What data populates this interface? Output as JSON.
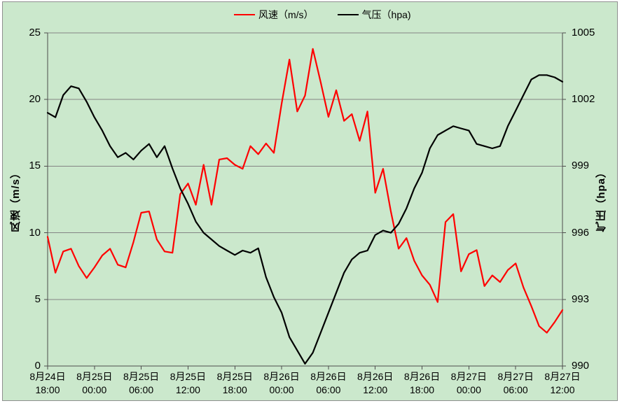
{
  "colors": {
    "background": "#cbe8cc",
    "border": "#8f8f8f",
    "grid": "#848484",
    "axis": "#4d4d4d",
    "wind": "#ff0000",
    "pressure": "#000000"
  },
  "legend": {
    "wind_label": "风速（m/s）",
    "pressure_label": "气压（hpa)"
  },
  "chart_data": {
    "type": "line",
    "title": "",
    "grid": true,
    "legend_position": "top",
    "x_start": "8月24日 18:00",
    "x_end": "8月27日 12:00",
    "points_interval_hours": 1,
    "left_axis": {
      "title": "风速（m/s）",
      "range": [
        0,
        25
      ],
      "step": 5,
      "tick_labels": [
        "25",
        "20",
        "15",
        "10",
        "5",
        "0"
      ]
    },
    "right_axis": {
      "title": "气压（hpa）",
      "range": [
        990,
        1005
      ],
      "step": 3,
      "tick_labels": [
        "1005",
        "1002",
        "999",
        "996",
        "993",
        "990"
      ]
    },
    "x_axis": {
      "tick_interval_hours": 6,
      "tick_labels": [
        {
          "date": "8月24日",
          "time": "18:00"
        },
        {
          "date": "8月25日",
          "time": "00:00"
        },
        {
          "date": "8月25日",
          "time": "06:00"
        },
        {
          "date": "8月25日",
          "time": "12:00"
        },
        {
          "date": "8月25日",
          "time": "18:00"
        },
        {
          "date": "8月26日",
          "time": "00:00"
        },
        {
          "date": "8月26日",
          "time": "06:00"
        },
        {
          "date": "8月26日",
          "time": "12:00"
        },
        {
          "date": "8月26日",
          "time": "18:00"
        },
        {
          "date": "8月27日",
          "time": "00:00"
        },
        {
          "date": "8月27日",
          "time": "06:00"
        },
        {
          "date": "8月27日",
          "time": "12:00"
        }
      ]
    },
    "series": [
      {
        "name": "风速（m/s）",
        "color": "#ff0000",
        "axis": "left",
        "values": [
          9.7,
          7.0,
          8.6,
          8.8,
          7.5,
          6.6,
          7.4,
          8.3,
          8.8,
          7.6,
          7.4,
          9.3,
          11.5,
          11.6,
          9.5,
          8.6,
          8.5,
          12.9,
          13.7,
          12.1,
          15.1,
          12.1,
          15.5,
          15.6,
          15.1,
          14.8,
          16.5,
          15.9,
          16.7,
          16.0,
          19.7,
          23.0,
          19.1,
          20.3,
          23.8,
          21.3,
          18.7,
          20.7,
          18.4,
          18.9,
          16.9,
          19.1,
          13.0,
          14.8,
          11.6,
          8.8,
          9.6,
          7.9,
          6.8,
          6.1,
          4.8,
          10.8,
          11.4,
          7.1,
          8.4,
          8.7,
          6.0,
          6.8,
          6.3,
          7.2,
          7.7,
          5.9,
          4.5,
          3.0,
          2.5,
          3.3,
          4.2
        ]
      },
      {
        "name": "气压（hpa)",
        "color": "#000000",
        "axis": "right",
        "values": [
          1001.4,
          1001.2,
          1002.2,
          1002.6,
          1002.5,
          1001.9,
          1001.2,
          1000.6,
          999.9,
          999.4,
          999.6,
          999.3,
          999.7,
          1000.0,
          999.4,
          999.9,
          998.9,
          998.0,
          997.3,
          996.5,
          996.0,
          995.7,
          995.4,
          995.2,
          995.0,
          995.2,
          995.1,
          995.3,
          994.0,
          993.1,
          992.4,
          991.3,
          990.7,
          990.1,
          990.6,
          991.5,
          992.4,
          993.3,
          994.2,
          994.8,
          995.1,
          995.2,
          995.9,
          996.1,
          996.0,
          996.4,
          997.1,
          998.0,
          998.7,
          999.8,
          1000.4,
          1000.6,
          1000.8,
          1000.7,
          1000.6,
          1000.0,
          999.9,
          999.8,
          999.9,
          1000.8,
          1001.5,
          1002.2,
          1002.9,
          1003.1,
          1003.1,
          1003.0,
          1002.8
        ]
      }
    ]
  }
}
